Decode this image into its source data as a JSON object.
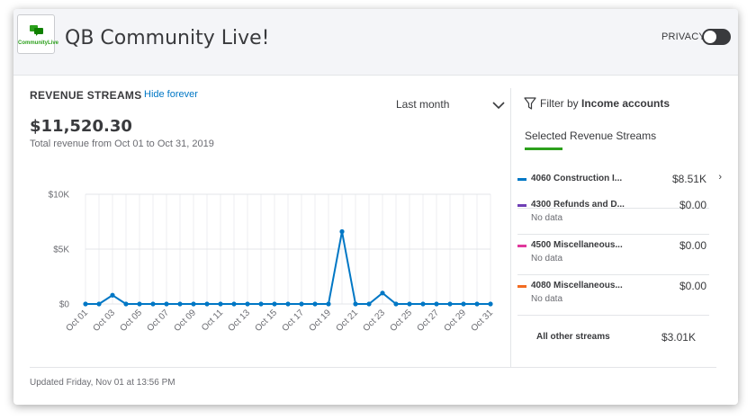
{
  "header": {
    "app_title": "QB Community Live!",
    "logo_text": "CommunityLive",
    "privacy_label": "PRIVACY",
    "privacy_on": false
  },
  "widget": {
    "title": "REVENUE STREAMS",
    "hide_link": "Hide forever",
    "period": "Last month",
    "total": "$11,520.30",
    "total_subtitle": "Total revenue from Oct 01 to Oct 31, 2019",
    "updated": "Updated Friday, Nov 01 at 13:56 PM"
  },
  "filter": {
    "prefix": "Filter by ",
    "bold": "Income accounts",
    "selected_title": "Selected Revenue Streams"
  },
  "streams": [
    {
      "color": "#0077c5",
      "name": "4060 Construction I...",
      "value": "$8.51K",
      "nodata": "",
      "chevron": "›"
    },
    {
      "color": "#6f3fb5",
      "name": "4300 Refunds and D...",
      "value": "$0.00",
      "nodata": "No data",
      "chevron": ""
    },
    {
      "color": "#e0389c",
      "name": "4500 Miscellaneous...",
      "value": "$0.00",
      "nodata": "No data",
      "chevron": ""
    },
    {
      "color": "#f26b21",
      "name": "4080 Miscellaneous...",
      "value": "$0.00",
      "nodata": "No data",
      "chevron": ""
    }
  ],
  "other": {
    "label": "All other streams",
    "value": "$3.01K"
  },
  "colors": {
    "accent": "#2ca01c",
    "line": "#0077c5",
    "link": "#0077c5"
  },
  "chart_data": {
    "type": "line",
    "x": [
      "Oct 01",
      "Oct 02",
      "Oct 03",
      "Oct 04",
      "Oct 05",
      "Oct 06",
      "Oct 07",
      "Oct 08",
      "Oct 09",
      "Oct 10",
      "Oct 11",
      "Oct 12",
      "Oct 13",
      "Oct 14",
      "Oct 15",
      "Oct 16",
      "Oct 17",
      "Oct 18",
      "Oct 19",
      "Oct 20",
      "Oct 21",
      "Oct 22",
      "Oct 23",
      "Oct 24",
      "Oct 25",
      "Oct 26",
      "Oct 27",
      "Oct 28",
      "Oct 29",
      "Oct 30",
      "Oct 31"
    ],
    "xtick_labels": [
      "Oct 01",
      "Oct 03",
      "Oct 05",
      "Oct 07",
      "Oct 09",
      "Oct 11",
      "Oct 13",
      "Oct 15",
      "Oct 17",
      "Oct 19",
      "Oct 21",
      "Oct 23",
      "Oct 25",
      "Oct 27",
      "Oct 29",
      "Oct 31"
    ],
    "series": [
      {
        "values": [
          0,
          0,
          800,
          0,
          0,
          0,
          0,
          0,
          0,
          0,
          0,
          0,
          0,
          0,
          0,
          0,
          0,
          0,
          0,
          6600,
          0,
          0,
          1000,
          0,
          0,
          0,
          0,
          0,
          0,
          0,
          0
        ]
      }
    ],
    "ytick_labels": [
      "$0",
      "$5K",
      "$10K"
    ],
    "ytick_values": [
      0,
      5000,
      10000
    ],
    "ylim": [
      0,
      10000
    ],
    "grid": true
  }
}
